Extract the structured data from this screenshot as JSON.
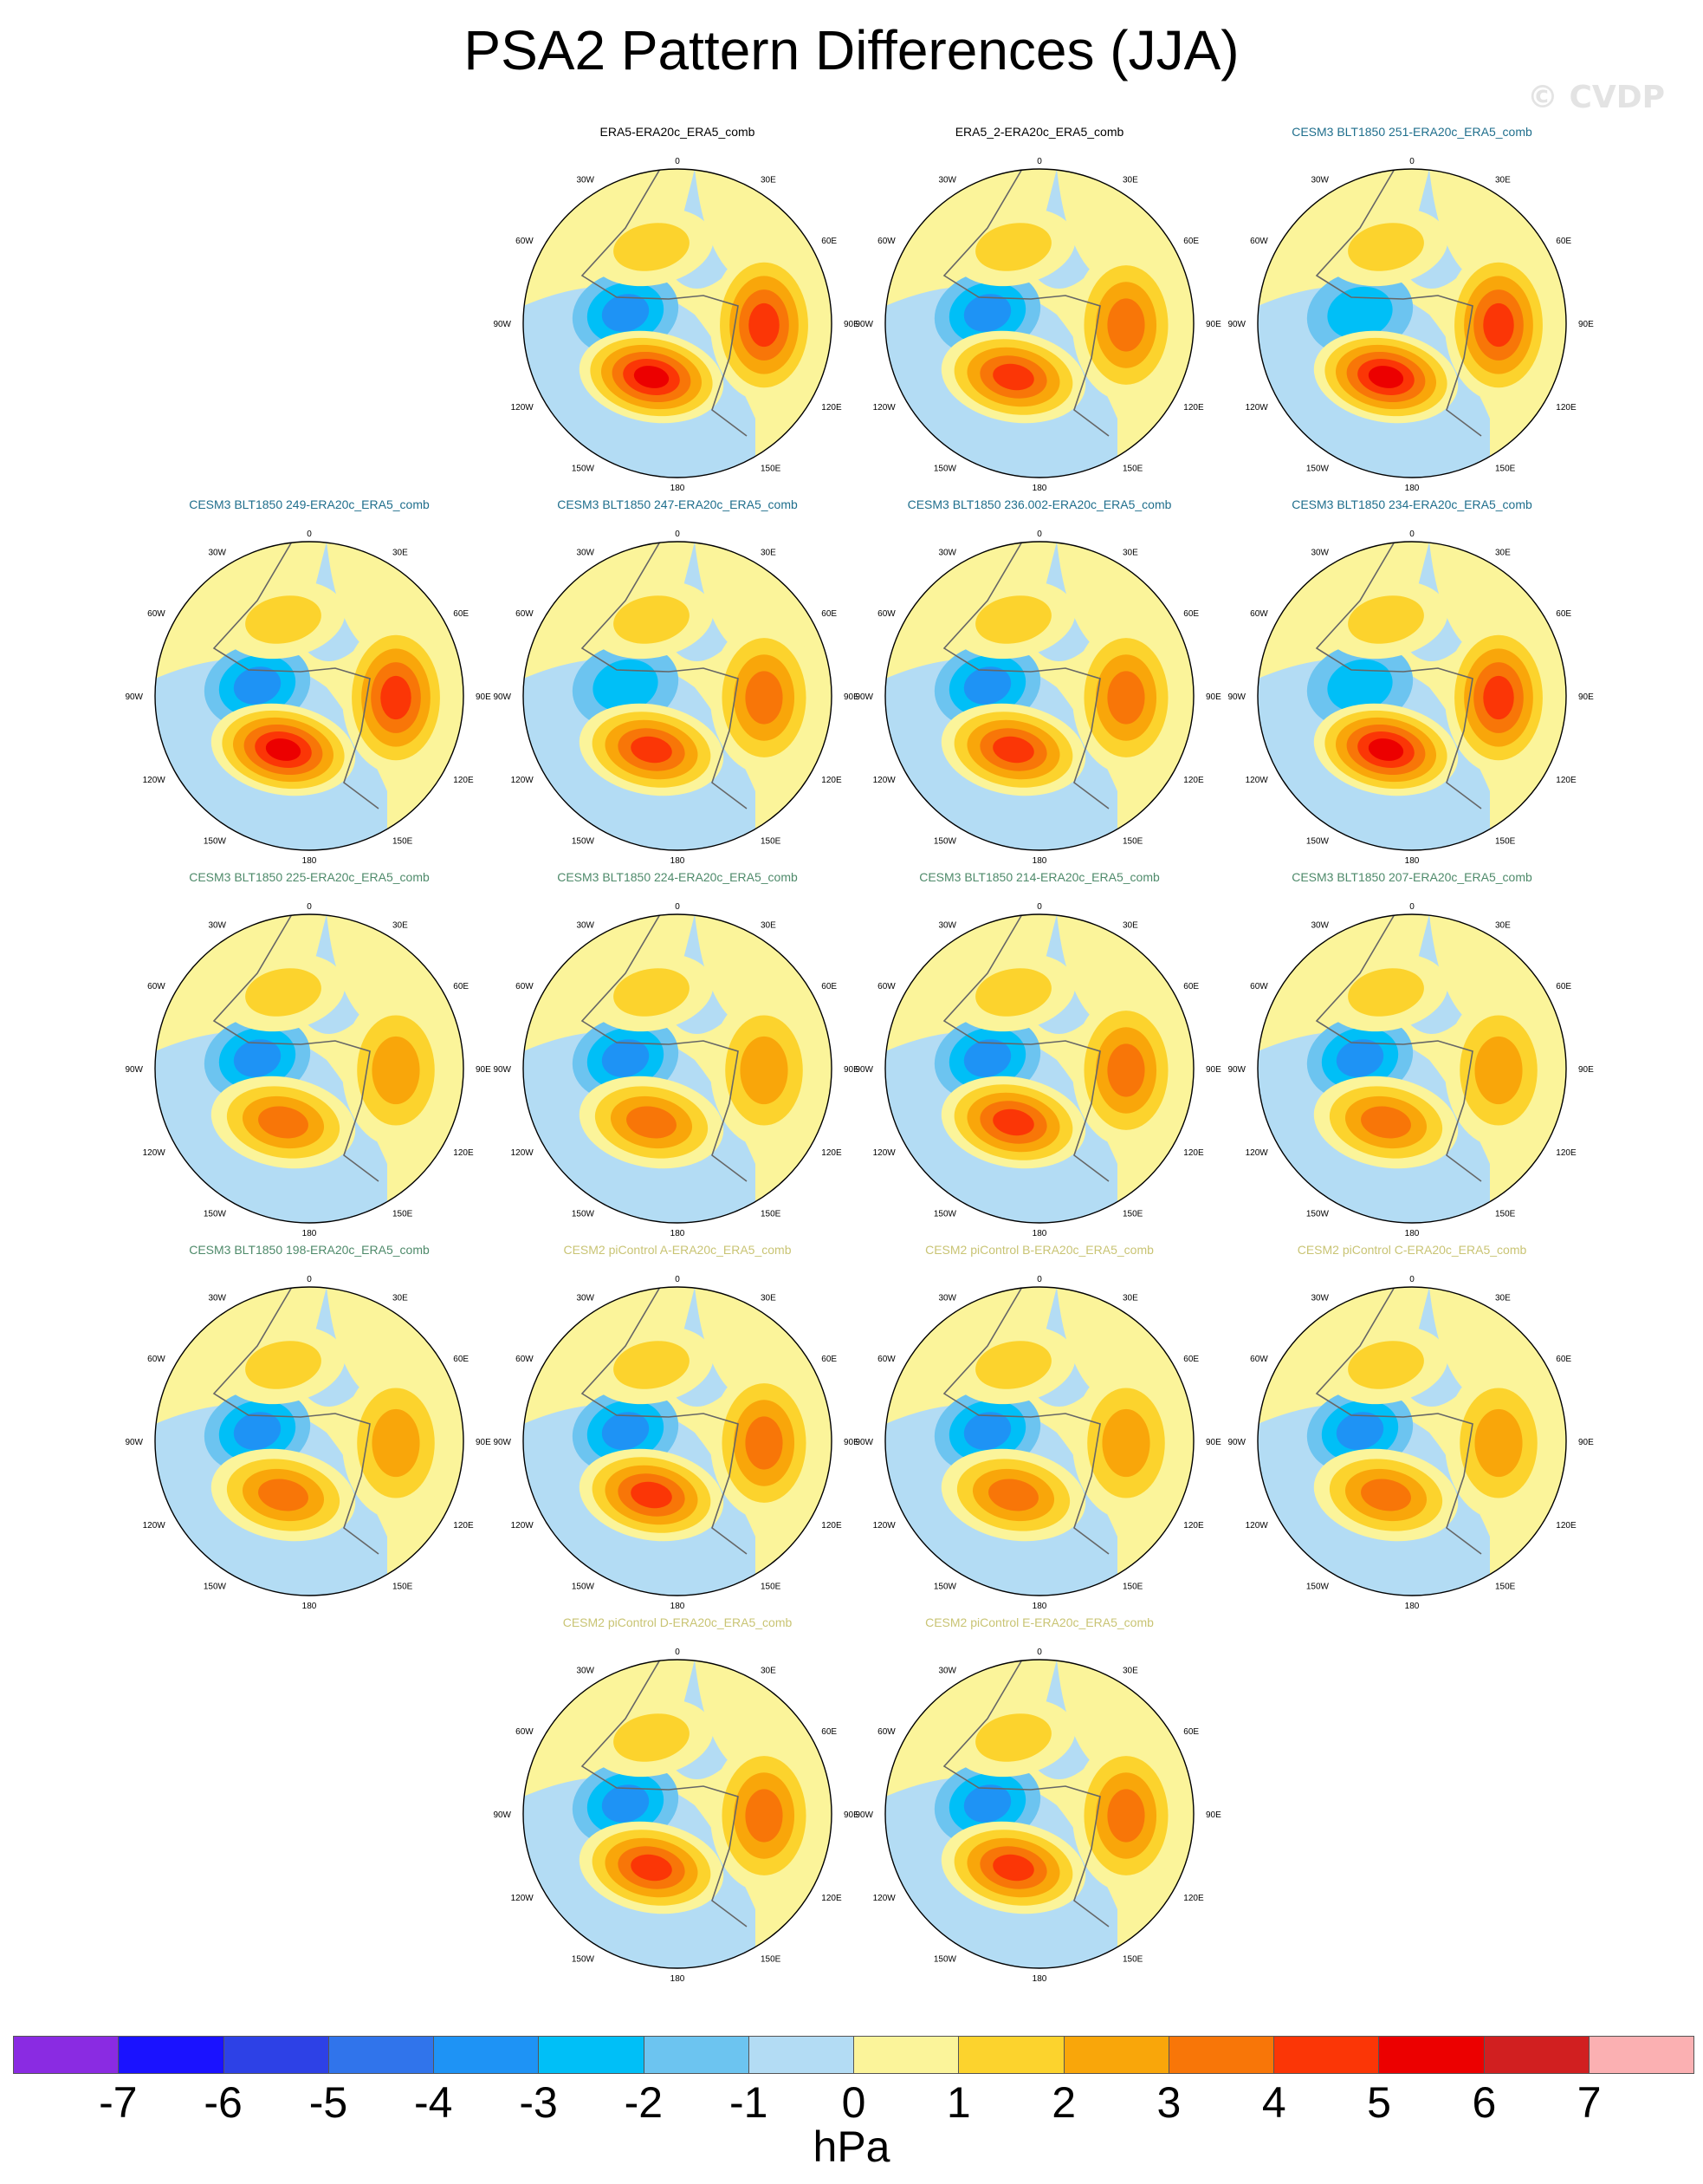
{
  "title": "PSA2 Pattern Differences (JJA)",
  "watermark": "© CVDP",
  "colorbar": {
    "unit": "hPa",
    "tick_labels": [
      "-7",
      "-6",
      "-5",
      "-4",
      "-3",
      "-2",
      "-1",
      "0",
      "1",
      "2",
      "3",
      "4",
      "5",
      "6",
      "7"
    ],
    "colors": [
      "#8a2be2",
      "#1a12ff",
      "#2d41e6",
      "#3074eb",
      "#1e93f5",
      "#00bff7",
      "#6cc4f0",
      "#b3dcf4",
      "#fbf49a",
      "#fcd32d",
      "#f9a60a",
      "#f87608",
      "#fb3606",
      "#ec0000",
      "#d11f20",
      "#fbb0b2"
    ]
  },
  "axis_labels": {
    "top": "0",
    "bottom": "180",
    "left": [
      "30W",
      "60W",
      "90W",
      "120W",
      "150W"
    ],
    "right": [
      "30E",
      "60E",
      "90E",
      "120E",
      "150E"
    ]
  },
  "panels": [
    {
      "title": "ERA5-ERA20c_ERA5_comb",
      "title_color": "#000000",
      "peak": 6,
      "trough": -3
    },
    {
      "title": "ERA5_2-ERA20c_ERA5_comb",
      "title_color": "#000000",
      "peak": 5,
      "trough": -3
    },
    {
      "title": "CESM3 BLT1850 251-ERA20c_ERA5_comb",
      "title_color": "#1f6e8c",
      "peak": 6,
      "trough": -2
    },
    {
      "title": "CESM3 BLT1850 249-ERA20c_ERA5_comb",
      "title_color": "#1f6e8c",
      "peak": 6,
      "trough": -3
    },
    {
      "title": "CESM3 BLT1850 247-ERA20c_ERA5_comb",
      "title_color": "#1f6e8c",
      "peak": 5,
      "trough": -2
    },
    {
      "title": "CESM3 BLT1850 236.002-ERA20c_ERA5_comb",
      "title_color": "#1f6e8c",
      "peak": 5,
      "trough": -3
    },
    {
      "title": "CESM3 BLT1850 234-ERA20c_ERA5_comb",
      "title_color": "#1f6e8c",
      "peak": 6,
      "trough": -2
    },
    {
      "title": "CESM3 BLT1850 225-ERA20c_ERA5_comb",
      "title_color": "#4e8a6a",
      "peak": 4,
      "trough": -3
    },
    {
      "title": "CESM3 BLT1850 224-ERA20c_ERA5_comb",
      "title_color": "#4e8a6a",
      "peak": 4,
      "trough": -3
    },
    {
      "title": "CESM3 BLT1850 214-ERA20c_ERA5_comb",
      "title_color": "#4e8a6a",
      "peak": 5,
      "trough": -3
    },
    {
      "title": "CESM3 BLT1850 207-ERA20c_ERA5_comb",
      "title_color": "#4e8a6a",
      "peak": 4,
      "trough": -3
    },
    {
      "title": "CESM3 BLT1850 198-ERA20c_ERA5_comb",
      "title_color": "#4e8a6a",
      "peak": 4,
      "trough": -3
    },
    {
      "title": "CESM2 piControl A-ERA20c_ERA5_comb",
      "title_color": "#c9c474",
      "peak": 5,
      "trough": -3
    },
    {
      "title": "CESM2 piControl B-ERA20c_ERA5_comb",
      "title_color": "#c9c474",
      "peak": 4,
      "trough": -3
    },
    {
      "title": "CESM2 piControl C-ERA20c_ERA5_comb",
      "title_color": "#c9c474",
      "peak": 4,
      "trough": -3
    },
    {
      "title": "CESM2 piControl D-ERA20c_ERA5_comb",
      "title_color": "#c9c474",
      "peak": 5,
      "trough": -3
    },
    {
      "title": "CESM2 piControl E-ERA20c_ERA5_comb",
      "title_color": "#c9c474",
      "peak": 5,
      "trough": -3
    }
  ]
}
